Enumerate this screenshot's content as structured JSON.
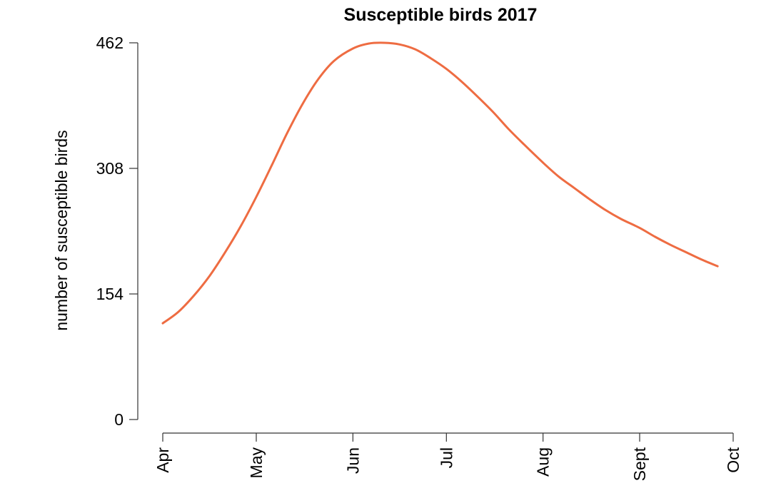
{
  "chart_data": {
    "type": "line",
    "title": "Susceptible birds 2017",
    "xlabel": "",
    "ylabel": "number of susceptible birds",
    "xlim": [
      "2017-04-01",
      "2017-10-01"
    ],
    "ylim": [
      0,
      462
    ],
    "x_ticks": [
      {
        "date": "2017-04-01",
        "label": "Apr"
      },
      {
        "date": "2017-05-01",
        "label": "May"
      },
      {
        "date": "2017-06-01",
        "label": "Jun"
      },
      {
        "date": "2017-07-01",
        "label": "Jul"
      },
      {
        "date": "2017-08-01",
        "label": "Aug"
      },
      {
        "date": "2017-09-01",
        "label": "Sept"
      },
      {
        "date": "2017-10-01",
        "label": "Oct"
      }
    ],
    "y_ticks": [
      0,
      154,
      308,
      462
    ],
    "grid": false,
    "legend": "none",
    "color": "#EE6C42",
    "series": [
      {
        "x": [
          "2017-04-01",
          "2017-04-06",
          "2017-04-11",
          "2017-04-16",
          "2017-04-21",
          "2017-04-26",
          "2017-05-01",
          "2017-05-06",
          "2017-05-11",
          "2017-05-16",
          "2017-05-21",
          "2017-05-26",
          "2017-06-01",
          "2017-06-06",
          "2017-06-11",
          "2017-06-16",
          "2017-06-21",
          "2017-06-26",
          "2017-07-01",
          "2017-07-06",
          "2017-07-11",
          "2017-07-16",
          "2017-07-21",
          "2017-07-26",
          "2017-08-01",
          "2017-08-06",
          "2017-08-11",
          "2017-08-16",
          "2017-08-21",
          "2017-08-26",
          "2017-09-01",
          "2017-09-06",
          "2017-09-11",
          "2017-09-16",
          "2017-09-21",
          "2017-09-26"
        ],
        "y": [
          118,
          132,
          152,
          176,
          205,
          237,
          273,
          312,
          352,
          388,
          418,
          440,
          455,
          461,
          462,
          460,
          454,
          443,
          430,
          414,
          396,
          377,
          356,
          337,
          315,
          298,
          284,
          270,
          257,
          246,
          235,
          224,
          214,
          205,
          196,
          188
        ]
      }
    ]
  }
}
